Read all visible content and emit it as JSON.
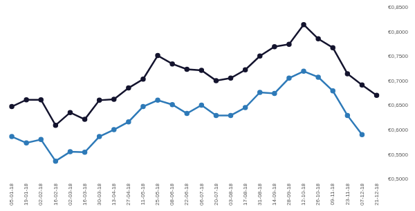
{
  "chart_data": {
    "type": "line",
    "categories": [
      "05-01-18",
      "19-01-18",
      "02-02-18",
      "16-02-18",
      "02-03-18",
      "16-03-18",
      "30-03-18",
      "13-04-18",
      "27-04-18",
      "11-05-18",
      "25-05-18",
      "08-06-18",
      "22-06-18",
      "06-07-18",
      "20-07-18",
      "03-08-18",
      "17-08-18",
      "31-08-18",
      "14-09-18",
      "28-09-18",
      "12-10-18",
      "26-10-18",
      "09-11-18",
      "23-11-18",
      "07-12-18",
      "21-12-18"
    ],
    "series": [
      {
        "color": "#14142e",
        "marker": "circle",
        "line_style": "solid",
        "values": [
          0.648,
          0.662,
          0.662,
          0.61,
          0.636,
          0.622,
          0.661,
          0.663,
          0.686,
          0.704,
          0.752,
          0.735,
          0.724,
          0.722,
          0.701,
          0.706,
          0.723,
          0.751,
          0.77,
          0.775,
          0.815,
          0.786,
          0.768,
          0.715,
          0.692,
          0.671
        ]
      },
      {
        "color": "#2e7ab8",
        "marker": "circle",
        "line_style": "solid",
        "values": [
          0.587,
          0.574,
          0.581,
          0.537,
          0.556,
          0.555,
          0.587,
          0.601,
          0.617,
          0.648,
          0.661,
          0.652,
          0.634,
          0.651,
          0.63,
          0.63,
          0.646,
          0.677,
          0.675,
          0.706,
          0.72,
          0.708,
          0.68,
          0.63,
          0.591,
          null
        ]
      }
    ],
    "ylim": [
      0.5,
      0.85
    ],
    "yticks": [
      {
        "value": 0.5,
        "label": "€0,5000"
      },
      {
        "value": 0.55,
        "label": "€0,5500"
      },
      {
        "value": 0.6,
        "label": "€0,6000"
      },
      {
        "value": 0.65,
        "label": "€0,6500"
      },
      {
        "value": 0.7,
        "label": "€0,7000"
      },
      {
        "value": 0.75,
        "label": "€0,7500"
      },
      {
        "value": 0.8,
        "label": "€0,8000"
      },
      {
        "value": 0.85,
        "label": "€0,8500"
      }
    ],
    "grid": false,
    "tick_labels": true
  }
}
